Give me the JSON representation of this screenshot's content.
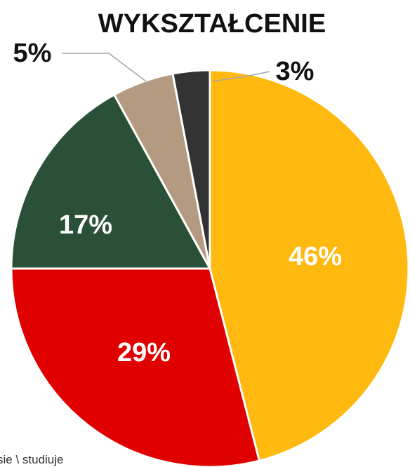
{
  "chart_data": {
    "type": "pie",
    "title": "WYKSZTAŁCENIE",
    "slices": [
      {
        "label": "46%",
        "value": 46,
        "color": "#FFB90F"
      },
      {
        "label": "29%",
        "value": 29,
        "color": "#E00000"
      },
      {
        "label": "17%",
        "value": 17,
        "color": "#2A5138"
      },
      {
        "label": "5%",
        "value": 5,
        "color": "#B39A80"
      },
      {
        "label": "3%",
        "value": 3,
        "color": "#333333"
      }
    ],
    "legend_fragment": "sie \\ studiuje"
  }
}
